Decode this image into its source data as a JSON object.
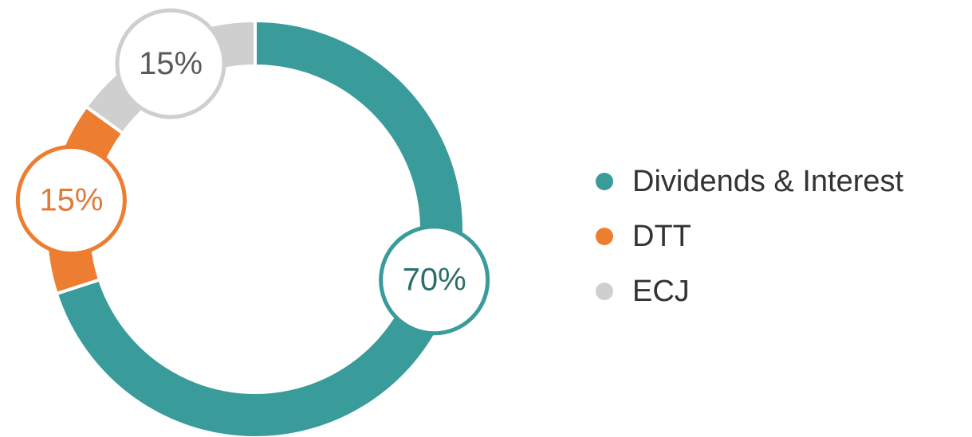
{
  "chart_data": {
    "type": "pie",
    "categories": [
      "Dividends & Interest",
      "DTT",
      "ECJ"
    ],
    "values": [
      70,
      15,
      15
    ],
    "value_labels": [
      "70%",
      "15%",
      "15%"
    ],
    "colors": [
      "#3a9b9b",
      "#ed7d31",
      "#d0cfcf"
    ],
    "legend": "right"
  }
}
